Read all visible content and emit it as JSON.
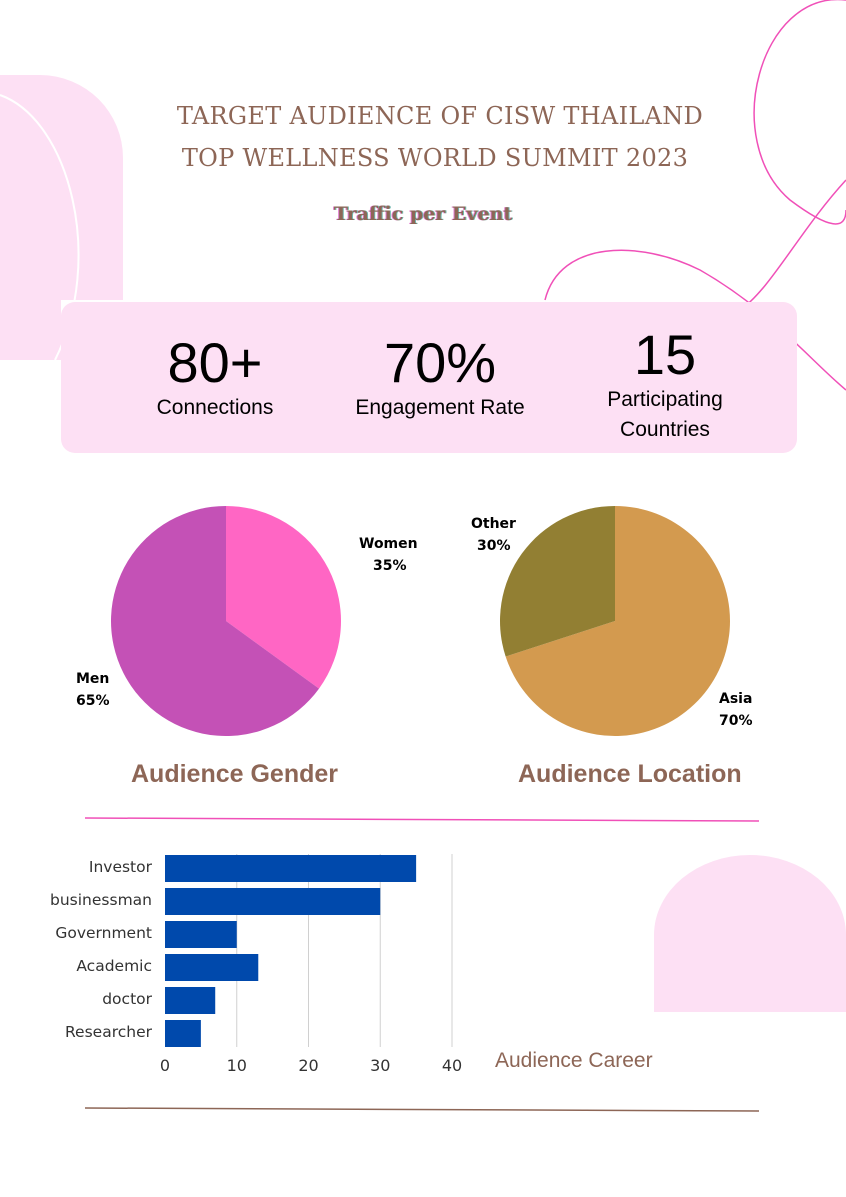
{
  "header": {
    "title_line1": "TARGET AUDIENCE OF  CISW THAILAND",
    "title_line2": "TOP WELLNESS WORLD SUMMIT 2023",
    "subtitle": "Traffic per Event"
  },
  "stats": [
    {
      "value": "80+",
      "label": "Connections"
    },
    {
      "value": "70%",
      "label": "Engagement Rate"
    },
    {
      "value": "15",
      "label_line1": "Participating",
      "label_line2": "Countries"
    }
  ],
  "colors": {
    "brand_brown": "#8d6656",
    "pink_bg": "#fde0f4",
    "accent_pink": "#f050b8",
    "bar_blue": "#0049ac"
  },
  "chart_data": [
    {
      "type": "pie",
      "title": "Audience Gender",
      "slices": [
        {
          "label": "Women",
          "value": 35,
          "display": "35%",
          "color": "#ff66c4"
        },
        {
          "label": "Men",
          "value": 65,
          "display": "65%",
          "color": "#c451b6"
        }
      ]
    },
    {
      "type": "pie",
      "title": "Audience Location",
      "slices": [
        {
          "label": "Asia",
          "value": 70,
          "display": "70%",
          "color": "#d39a4f"
        },
        {
          "label": "Other",
          "value": 30,
          "display": "30%",
          "color": "#927f33"
        }
      ]
    },
    {
      "type": "bar",
      "orientation": "horizontal",
      "title": "Audience Career",
      "categories": [
        "Investor",
        "businessman",
        "Government",
        "Academic",
        "doctor",
        "Researcher"
      ],
      "values": [
        35,
        30,
        10,
        13,
        7,
        5
      ],
      "xlim": [
        0,
        40
      ],
      "xticks": [
        "0",
        "10",
        "20",
        "30",
        "40"
      ],
      "grid": true
    }
  ]
}
